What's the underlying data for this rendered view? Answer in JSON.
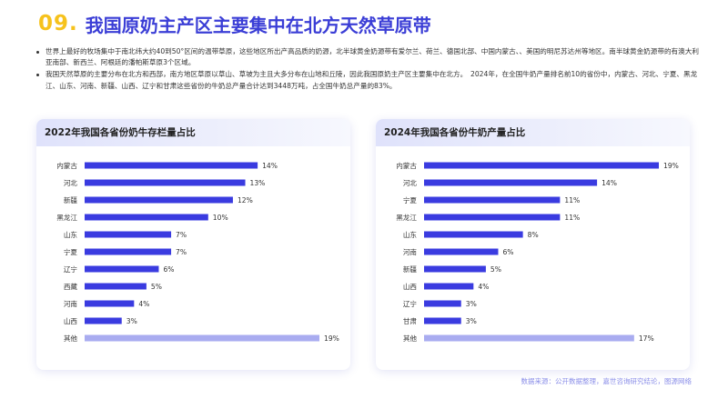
{
  "header": {
    "number": "09.",
    "title": "我国原奶主产区主要集中在北方天然草原带"
  },
  "bullets": [
    "世界上最好的牧场集中于南北纬大约40到50°区间的温带草原，这些地区所出产高品质的奶源，北半球黄金奶源带有爱尔兰、荷兰、德国北部、中国内蒙古、、美国的明尼苏达州等地区。南半球黄金奶源带的有澳大利亚南部、新西兰、阿根廷的潘帕斯草原3个区域。",
    "我国天然草原的主要分布在北方和西部，南方地区草原以草山、草坡为主且大多分布在山地和丘陵，因此我国原奶主产区主要集中在北方。　2024年，在全国牛奶产量排名前10的省份中，内蒙古、河北、宁夏、黑龙江、山东、河南、新疆、山西、辽宁和甘肃这些省份的牛奶总产量合计达到3448万吨，占全国牛奶总产量的83%。"
  ],
  "colors": {
    "bar": "#3a3be0",
    "bar_other": "#a9acf0",
    "title_number": "#f6c21c",
    "title_text": "#3b3ed6"
  },
  "chart_data": [
    {
      "type": "bar",
      "orientation": "horizontal",
      "title": "2022年我国各省份奶牛存栏量占比",
      "categories": [
        "内蒙古",
        "河北",
        "新疆",
        "黑龙江",
        "山东",
        "宁夏",
        "辽宁",
        "西藏",
        "河南",
        "山西",
        "其他"
      ],
      "values": [
        14,
        13,
        12,
        10,
        7,
        7,
        6,
        5,
        4,
        3,
        19
      ],
      "labels": [
        "14%",
        "13%",
        "12%",
        "10%",
        "7%",
        "7%",
        "6%",
        "5%",
        "4%",
        "3%",
        "19%"
      ],
      "unit": "%",
      "xlim": [
        0,
        19
      ],
      "grid": false
    },
    {
      "type": "bar",
      "orientation": "horizontal",
      "title": "2024年我国各省份牛奶产量占比",
      "categories": [
        "内蒙古",
        "河北",
        "宁夏",
        "黑龙江",
        "山东",
        "河南",
        "新疆",
        "山西",
        "辽宁",
        "甘肃",
        "其他"
      ],
      "values": [
        19,
        14,
        11,
        11,
        8,
        6,
        5,
        4,
        3,
        3,
        17
      ],
      "labels": [
        "19%",
        "14%",
        "11%",
        "11%",
        "8%",
        "6%",
        "5%",
        "4%",
        "3%",
        "3%",
        "17%"
      ],
      "unit": "%",
      "xlim": [
        0,
        19
      ],
      "grid": false
    }
  ],
  "source": "数据来源：公开数据整理，嘉世咨询研究结论，图源网络"
}
